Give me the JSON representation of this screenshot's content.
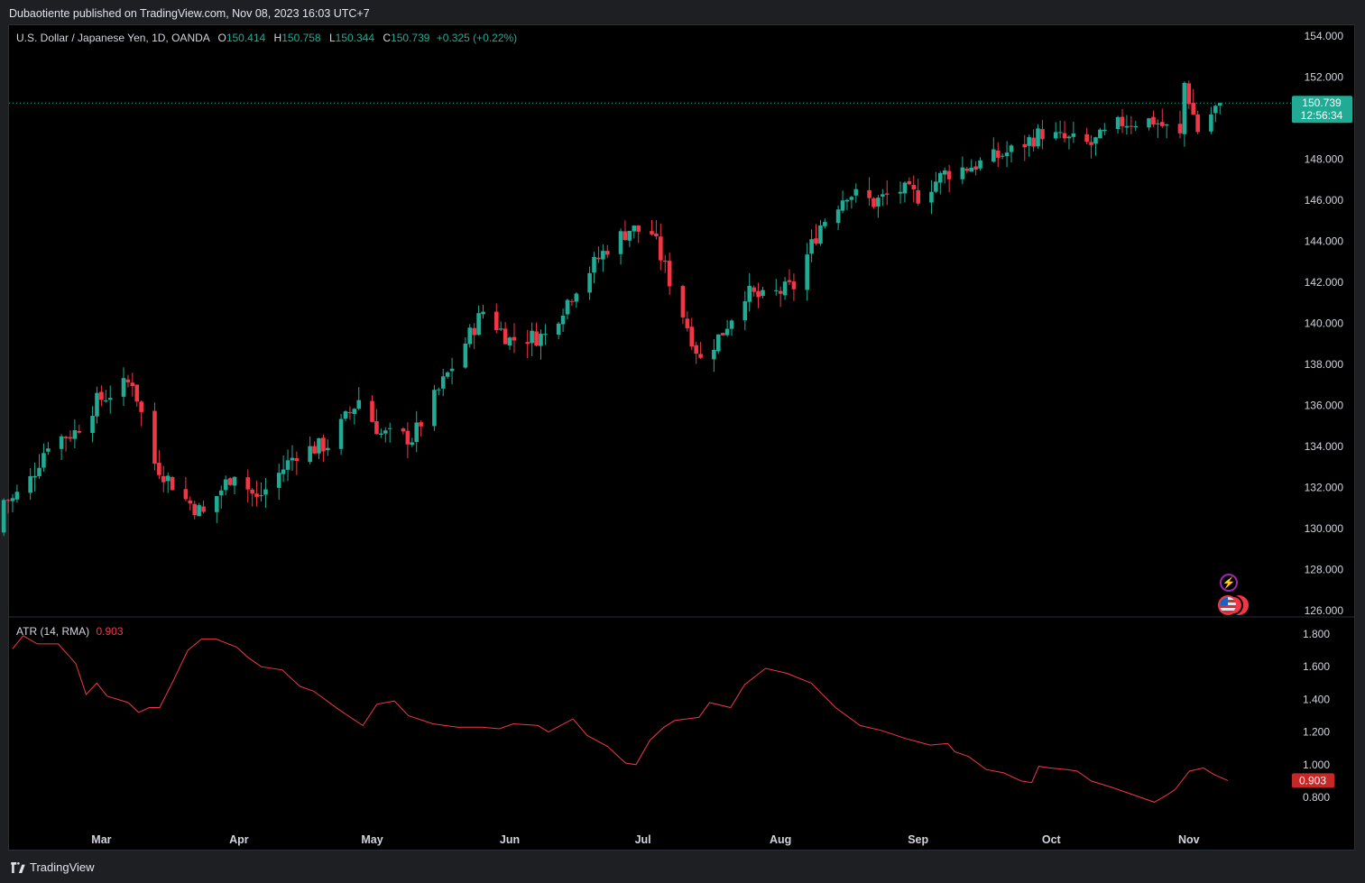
{
  "header": {
    "publisher_line": "Dubaotiente published on TradingView.com, Nov 08, 2023 16:03 UTC+7"
  },
  "symbol": {
    "title": "U.S. Dollar / Japanese Yen, 1D, OANDA",
    "o_label": "O",
    "o_value": "150.414",
    "h_label": "H",
    "h_value": "150.758",
    "l_label": "L",
    "l_value": "150.344",
    "c_label": "C",
    "c_value": "150.739",
    "change": "+0.325 (+0.22%)"
  },
  "last_price_badge": {
    "price": "150.739",
    "countdown": "12:56:34"
  },
  "indicator": {
    "title": "ATR (14, RMA)",
    "value": "0.903",
    "badge": "0.903"
  },
  "footer": {
    "brand": "TradingView"
  },
  "colors": {
    "up": "#22ab94",
    "down": "#f23645",
    "atr": "#f23645",
    "bg": "#000000"
  },
  "icons": [
    "lightning-event-icon",
    "us-flag-event-icon"
  ],
  "chart_data": [
    {
      "type": "candlestick",
      "title": "U.S. Dollar / Japanese Yen, 1D, OANDA",
      "x_tick_labels": [
        "Mar",
        "Apr",
        "May",
        "Jun",
        "Jul",
        "Aug",
        "Sep",
        "Oct",
        "Nov"
      ],
      "y_tick_labels": [
        "154.000",
        "152.000",
        "148.000",
        "146.000",
        "144.000",
        "142.000",
        "140.000",
        "138.000",
        "136.000",
        "134.000",
        "132.000",
        "130.000",
        "128.000",
        "126.000"
      ],
      "ylim": [
        126,
        154
      ],
      "last_price": 150.739,
      "close_anchors": [
        {
          "date": "2023-02-09",
          "close": 131.4
        },
        {
          "date": "2023-02-13",
          "close": 132.4
        },
        {
          "date": "2023-02-17",
          "close": 134.2
        },
        {
          "date": "2023-02-23",
          "close": 134.7
        },
        {
          "date": "2023-02-28",
          "close": 136.2
        },
        {
          "date": "2023-03-08",
          "close": 137.2
        },
        {
          "date": "2023-03-13",
          "close": 133.2
        },
        {
          "date": "2023-03-20",
          "close": 131.4
        },
        {
          "date": "2023-03-24",
          "close": 130.7
        },
        {
          "date": "2023-03-31",
          "close": 132.8
        },
        {
          "date": "2023-04-05",
          "close": 131.4
        },
        {
          "date": "2023-04-14",
          "close": 133.7
        },
        {
          "date": "2023-04-21",
          "close": 134.1
        },
        {
          "date": "2023-04-28",
          "close": 136.3
        },
        {
          "date": "2023-05-03",
          "close": 134.6
        },
        {
          "date": "2023-05-10",
          "close": 134.4
        },
        {
          "date": "2023-05-19",
          "close": 137.9
        },
        {
          "date": "2023-05-26",
          "close": 140.6
        },
        {
          "date": "2023-06-01",
          "close": 139.2
        },
        {
          "date": "2023-06-09",
          "close": 139.4
        },
        {
          "date": "2023-06-16",
          "close": 141.8
        },
        {
          "date": "2023-06-23",
          "close": 143.7
        },
        {
          "date": "2023-06-28",
          "close": 144.6
        },
        {
          "date": "2023-07-03",
          "close": 144.4
        },
        {
          "date": "2023-07-07",
          "close": 142.1
        },
        {
          "date": "2023-07-14",
          "close": 138.2
        },
        {
          "date": "2023-07-19",
          "close": 139.6
        },
        {
          "date": "2023-07-24",
          "close": 141.5
        },
        {
          "date": "2023-07-28",
          "close": 141.2
        },
        {
          "date": "2023-08-04",
          "close": 141.8
        },
        {
          "date": "2023-08-10",
          "close": 144.8
        },
        {
          "date": "2023-08-16",
          "close": 146.4
        },
        {
          "date": "2023-08-22",
          "close": 145.9
        },
        {
          "date": "2023-08-28",
          "close": 146.5
        },
        {
          "date": "2023-09-01",
          "close": 146.2
        },
        {
          "date": "2023-09-07",
          "close": 147.3
        },
        {
          "date": "2023-09-15",
          "close": 147.8
        },
        {
          "date": "2023-09-22",
          "close": 148.4
        },
        {
          "date": "2023-09-29",
          "close": 149.3
        },
        {
          "date": "2023-10-03",
          "close": 149.0
        },
        {
          "date": "2023-10-10",
          "close": 148.7
        },
        {
          "date": "2023-10-17",
          "close": 149.8
        },
        {
          "date": "2023-10-24",
          "close": 149.9
        },
        {
          "date": "2023-10-30",
          "close": 149.1
        },
        {
          "date": "2023-10-31",
          "close": 151.7
        },
        {
          "date": "2023-11-03",
          "close": 149.4
        },
        {
          "date": "2023-11-08",
          "close": 150.739
        }
      ]
    },
    {
      "type": "line",
      "title": "ATR (14, RMA)",
      "y_tick_labels": [
        "1.800",
        "1.600",
        "1.400",
        "1.200",
        "1.000",
        "0.800"
      ],
      "ylim": [
        0.74,
        1.84
      ],
      "points": [
        {
          "date": "2023-02-09",
          "value": 1.71
        },
        {
          "date": "2023-02-12",
          "value": 1.79
        },
        {
          "date": "2023-02-16",
          "value": 1.74
        },
        {
          "date": "2023-02-22",
          "value": 1.74
        },
        {
          "date": "2023-02-27",
          "value": 1.62
        },
        {
          "date": "2023-03-02",
          "value": 1.43
        },
        {
          "date": "2023-03-05",
          "value": 1.5
        },
        {
          "date": "2023-03-08",
          "value": 1.42
        },
        {
          "date": "2023-03-14",
          "value": 1.38
        },
        {
          "date": "2023-03-17",
          "value": 1.32
        },
        {
          "date": "2023-03-20",
          "value": 1.35
        },
        {
          "date": "2023-03-23",
          "value": 1.35
        },
        {
          "date": "2023-03-27",
          "value": 1.52
        },
        {
          "date": "2023-03-31",
          "value": 1.7
        },
        {
          "date": "2023-04-04",
          "value": 1.77
        },
        {
          "date": "2023-04-08",
          "value": 1.77
        },
        {
          "date": "2023-04-14",
          "value": 1.72
        },
        {
          "date": "2023-04-17",
          "value": 1.66
        },
        {
          "date": "2023-04-21",
          "value": 1.6
        },
        {
          "date": "2023-04-27",
          "value": 1.58
        },
        {
          "date": "2023-05-02",
          "value": 1.48
        },
        {
          "date": "2023-05-06",
          "value": 1.45
        },
        {
          "date": "2023-05-13",
          "value": 1.34
        },
        {
          "date": "2023-05-20",
          "value": 1.24
        },
        {
          "date": "2023-05-24",
          "value": 1.37
        },
        {
          "date": "2023-05-29",
          "value": 1.39
        },
        {
          "date": "2023-06-02",
          "value": 1.3
        },
        {
          "date": "2023-06-09",
          "value": 1.25
        },
        {
          "date": "2023-06-16",
          "value": 1.23
        },
        {
          "date": "2023-06-23",
          "value": 1.23
        },
        {
          "date": "2023-06-28",
          "value": 1.22
        },
        {
          "date": "2023-07-02",
          "value": 1.25
        },
        {
          "date": "2023-07-09",
          "value": 1.24
        },
        {
          "date": "2023-07-12",
          "value": 1.2
        },
        {
          "date": "2023-07-19",
          "value": 1.28
        },
        {
          "date": "2023-07-23",
          "value": 1.18
        },
        {
          "date": "2023-07-29",
          "value": 1.11
        },
        {
          "date": "2023-08-03",
          "value": 1.01
        },
        {
          "date": "2023-08-06",
          "value": 1.0
        },
        {
          "date": "2023-08-10",
          "value": 1.15
        },
        {
          "date": "2023-08-14",
          "value": 1.23
        },
        {
          "date": "2023-08-17",
          "value": 1.27
        },
        {
          "date": "2023-08-24",
          "value": 1.29
        },
        {
          "date": "2023-08-27",
          "value": 1.38
        },
        {
          "date": "2023-09-02",
          "value": 1.35
        },
        {
          "date": "2023-09-06",
          "value": 1.49
        },
        {
          "date": "2023-09-12",
          "value": 1.59
        },
        {
          "date": "2023-09-18",
          "value": 1.56
        },
        {
          "date": "2023-09-25",
          "value": 1.5
        },
        {
          "date": "2023-10-02",
          "value": 1.35
        },
        {
          "date": "2023-10-09",
          "value": 1.24
        },
        {
          "date": "2023-10-15",
          "value": 1.21
        },
        {
          "date": "2023-10-22",
          "value": 1.16
        },
        {
          "date": "2023-10-29",
          "value": 1.12
        },
        {
          "date": "2023-11-03",
          "value": 1.13
        },
        {
          "date": "2023-11-05",
          "value": 1.08
        },
        {
          "date": "2023-11-09",
          "value": 1.05
        },
        {
          "date": "2023-11-14",
          "value": 0.97
        },
        {
          "date": "2023-11-19",
          "value": 0.95
        },
        {
          "date": "2023-11-24",
          "value": 0.9
        },
        {
          "date": "2023-11-27",
          "value": 0.89
        },
        {
          "date": "2023-11-29",
          "value": 0.99
        },
        {
          "date": "2023-12-02",
          "value": 0.98
        },
        {
          "date": "2023-12-07",
          "value": 0.97
        },
        {
          "date": "2023-12-10",
          "value": 0.96
        },
        {
          "date": "2023-12-14",
          "value": 0.9
        },
        {
          "date": "2023-12-20",
          "value": 0.86
        },
        {
          "date": "2023-12-28",
          "value": 0.8
        },
        {
          "date": "2024-01-01",
          "value": 0.77
        },
        {
          "date": "2024-01-05",
          "value": 0.82
        },
        {
          "date": "2024-01-07",
          "value": 0.85
        },
        {
          "date": "2024-01-11",
          "value": 0.96
        },
        {
          "date": "2024-01-15",
          "value": 0.98
        },
        {
          "date": "2024-01-18",
          "value": 0.94
        },
        {
          "date": "2024-01-22",
          "value": 0.903
        }
      ]
    }
  ]
}
